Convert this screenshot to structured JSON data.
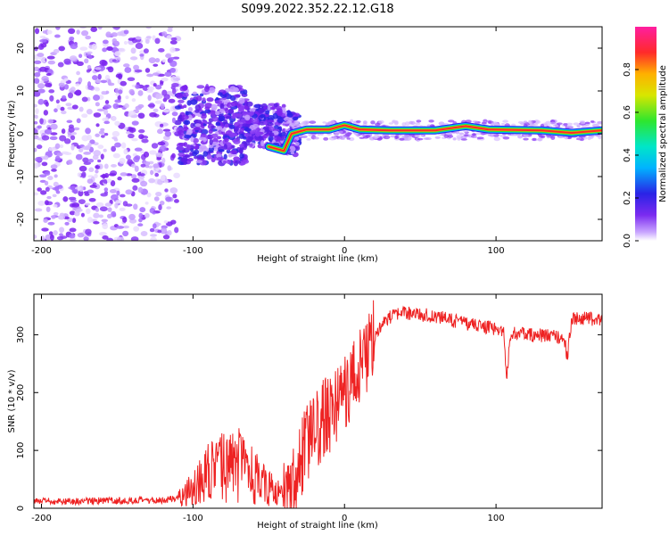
{
  "figure_title": "S099.2022.352.22.12.G18",
  "chart_data": [
    {
      "type": "heatmap",
      "xlabel": "Height of straight line (km)",
      "ylabel": "Frequency (Hz)",
      "xlim": [
        -205,
        170
      ],
      "ylim": [
        -25,
        25
      ],
      "x_ticks": [
        -200,
        -100,
        0,
        100
      ],
      "y_ticks": [
        -20,
        -10,
        0,
        10,
        20
      ],
      "colorbar": {
        "label": "Normalized spectral amplitude",
        "range": [
          0,
          1
        ],
        "ticks": [
          0.0,
          0.2,
          0.4,
          0.6,
          0.8
        ]
      },
      "ridge": [
        {
          "x": -50,
          "y": -3
        },
        {
          "x": -40,
          "y": -4
        },
        {
          "x": -35,
          "y": 0
        },
        {
          "x": -25,
          "y": 1
        },
        {
          "x": -10,
          "y": 1
        },
        {
          "x": 0,
          "y": 2
        },
        {
          "x": 10,
          "y": 1
        },
        {
          "x": 30,
          "y": 0.8
        },
        {
          "x": 60,
          "y": 0.8
        },
        {
          "x": 80,
          "y": 1.8
        },
        {
          "x": 95,
          "y": 1
        },
        {
          "x": 130,
          "y": 0.8
        },
        {
          "x": 150,
          "y": 0.2
        },
        {
          "x": 170,
          "y": 0.8
        }
      ],
      "grid": false
    },
    {
      "type": "line",
      "xlabel": "Height of straight line (km)",
      "ylabel": "SNR (10 * v/v)",
      "xlim": [
        -205,
        170
      ],
      "ylim": [
        0,
        370
      ],
      "x_ticks": [
        -200,
        -100,
        0,
        100
      ],
      "y_ticks": [
        0,
        100,
        200,
        300
      ],
      "series": [
        {
          "color": "#ee2222",
          "x": [
            -205,
            -180,
            -160,
            -140,
            -120,
            -110,
            -100,
            -90,
            -80,
            -70,
            -60,
            -50,
            -40,
            -35,
            -30,
            -25,
            -20,
            -15,
            -10,
            0,
            10,
            20,
            25,
            30,
            40,
            50,
            60,
            70,
            80,
            90,
            100,
            105,
            107,
            110,
            120,
            130,
            140,
            145,
            147,
            150,
            160,
            170
          ],
          "y": [
            12,
            12,
            13,
            13,
            14,
            18,
            35,
            60,
            70,
            75,
            55,
            35,
            20,
            30,
            70,
            110,
            130,
            150,
            165,
            200,
            240,
            300,
            320,
            330,
            338,
            335,
            332,
            325,
            320,
            315,
            310,
            305,
            230,
            305,
            300,
            298,
            298,
            295,
            260,
            328,
            328,
            325
          ]
        }
      ],
      "grid": false
    }
  ]
}
